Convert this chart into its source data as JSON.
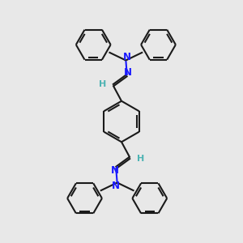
{
  "bg_color": "#e8e8e8",
  "bond_color": "#1a1a1a",
  "N_color": "#1a1aff",
  "H_color": "#4db3b3",
  "line_width": 1.5,
  "figsize": [
    3.0,
    3.0
  ],
  "dpi": 100,
  "xlim": [
    0,
    10
  ],
  "ylim": [
    0,
    10
  ]
}
